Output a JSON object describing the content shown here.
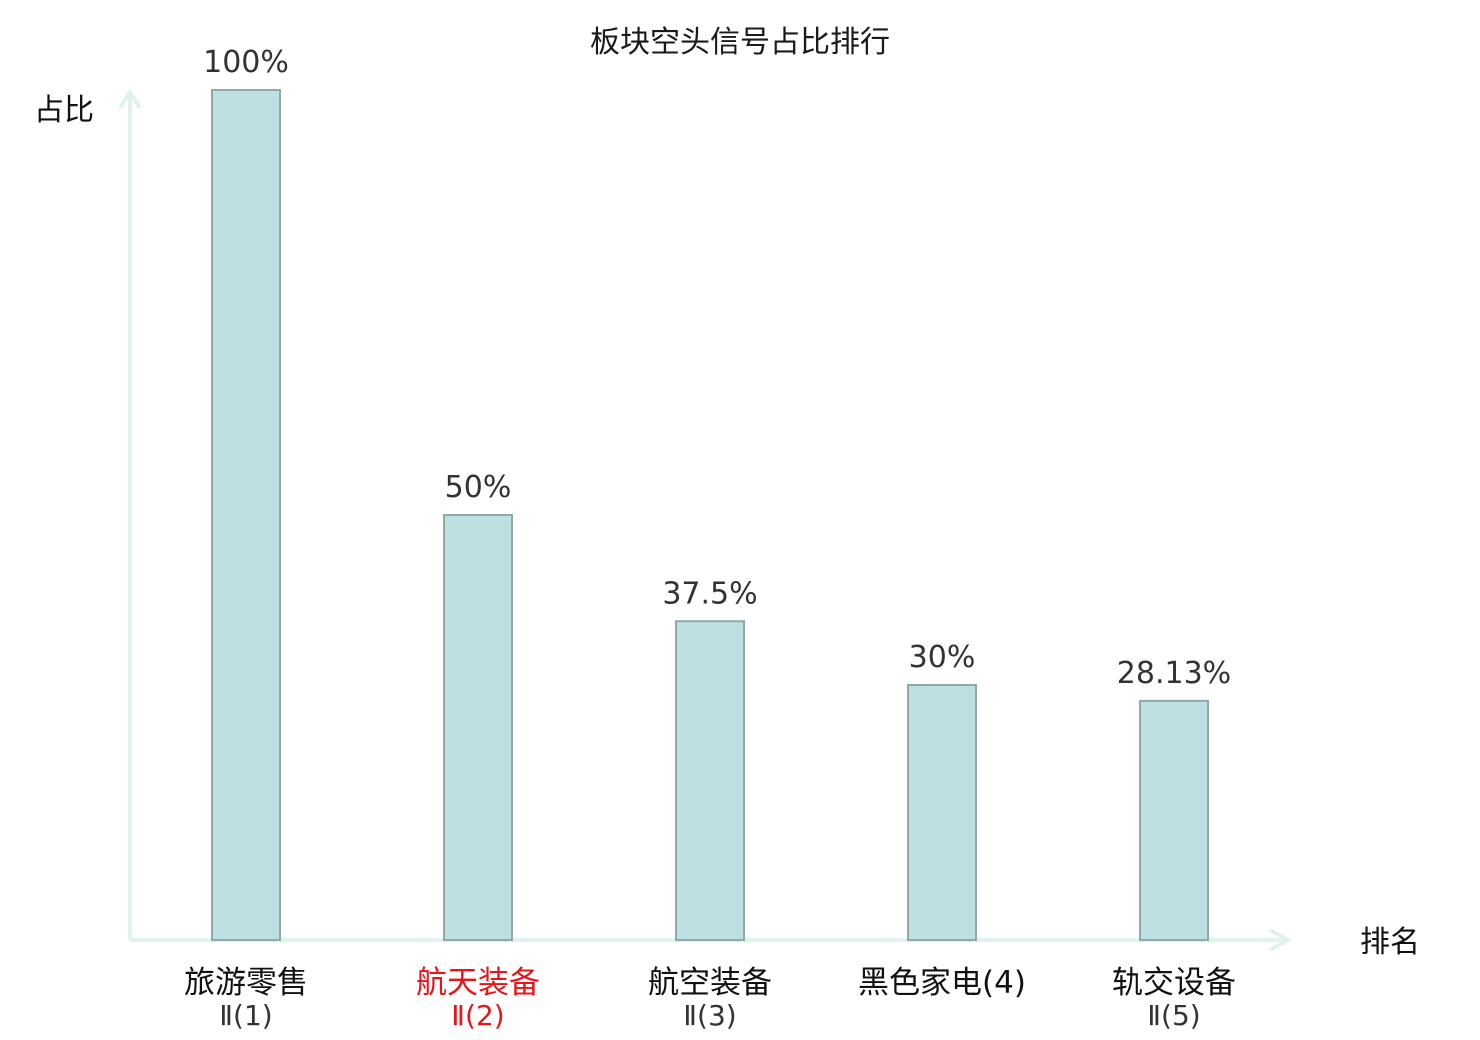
{
  "chart_data": {
    "type": "bar",
    "title": "板块空头信号占比排行",
    "ylabel": "占比",
    "xlabel": "排名",
    "ylim": [
      0,
      100
    ],
    "grid": false,
    "categories": [
      {
        "name": "旅游零售",
        "level": "Ⅱ(1)",
        "highlight": false
      },
      {
        "name": "航天装备",
        "level": "Ⅱ(2)",
        "highlight": true
      },
      {
        "name": "航空装备",
        "level": "Ⅱ(3)",
        "highlight": false
      },
      {
        "name": "黑色家电(4)",
        "level": "",
        "highlight": false
      },
      {
        "name": "轨交设备",
        "level": "Ⅱ(5)",
        "highlight": false
      }
    ],
    "values": [
      100,
      50,
      37.5,
      30,
      28.13
    ],
    "value_labels": [
      "100%",
      "50%",
      "37.5%",
      "30%",
      "28.13%"
    ]
  },
  "colors": {
    "bar_fill": "#bde0e2",
    "bar_stroke": "#8fa8a8",
    "axis": "#dff2ef",
    "text": "#333333",
    "highlight": "#e8141a"
  }
}
